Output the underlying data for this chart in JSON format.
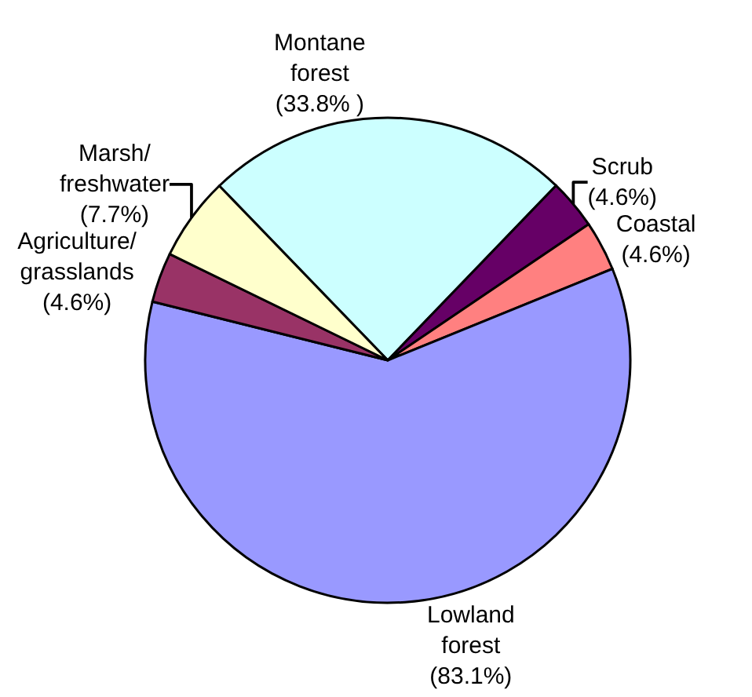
{
  "chart_data": {
    "type": "pie",
    "categories": [
      "Montane forest",
      "Scrub",
      "Coastal",
      "Lowland forest",
      "Agriculture/ grasslands",
      "Marsh/ freshwater"
    ],
    "values": [
      33.8,
      4.6,
      4.6,
      83.1,
      4.6,
      7.7
    ],
    "value_labels": [
      "(33.8% )",
      "(4.6%)",
      "(4.6%)",
      "(83.1%)",
      "(4.6%)",
      "(7.7%)"
    ],
    "colors": [
      "#ccffff",
      "#660066",
      "#ff8080",
      "#9999ff",
      "#993366",
      "#ffffcc"
    ],
    "legend": false
  }
}
